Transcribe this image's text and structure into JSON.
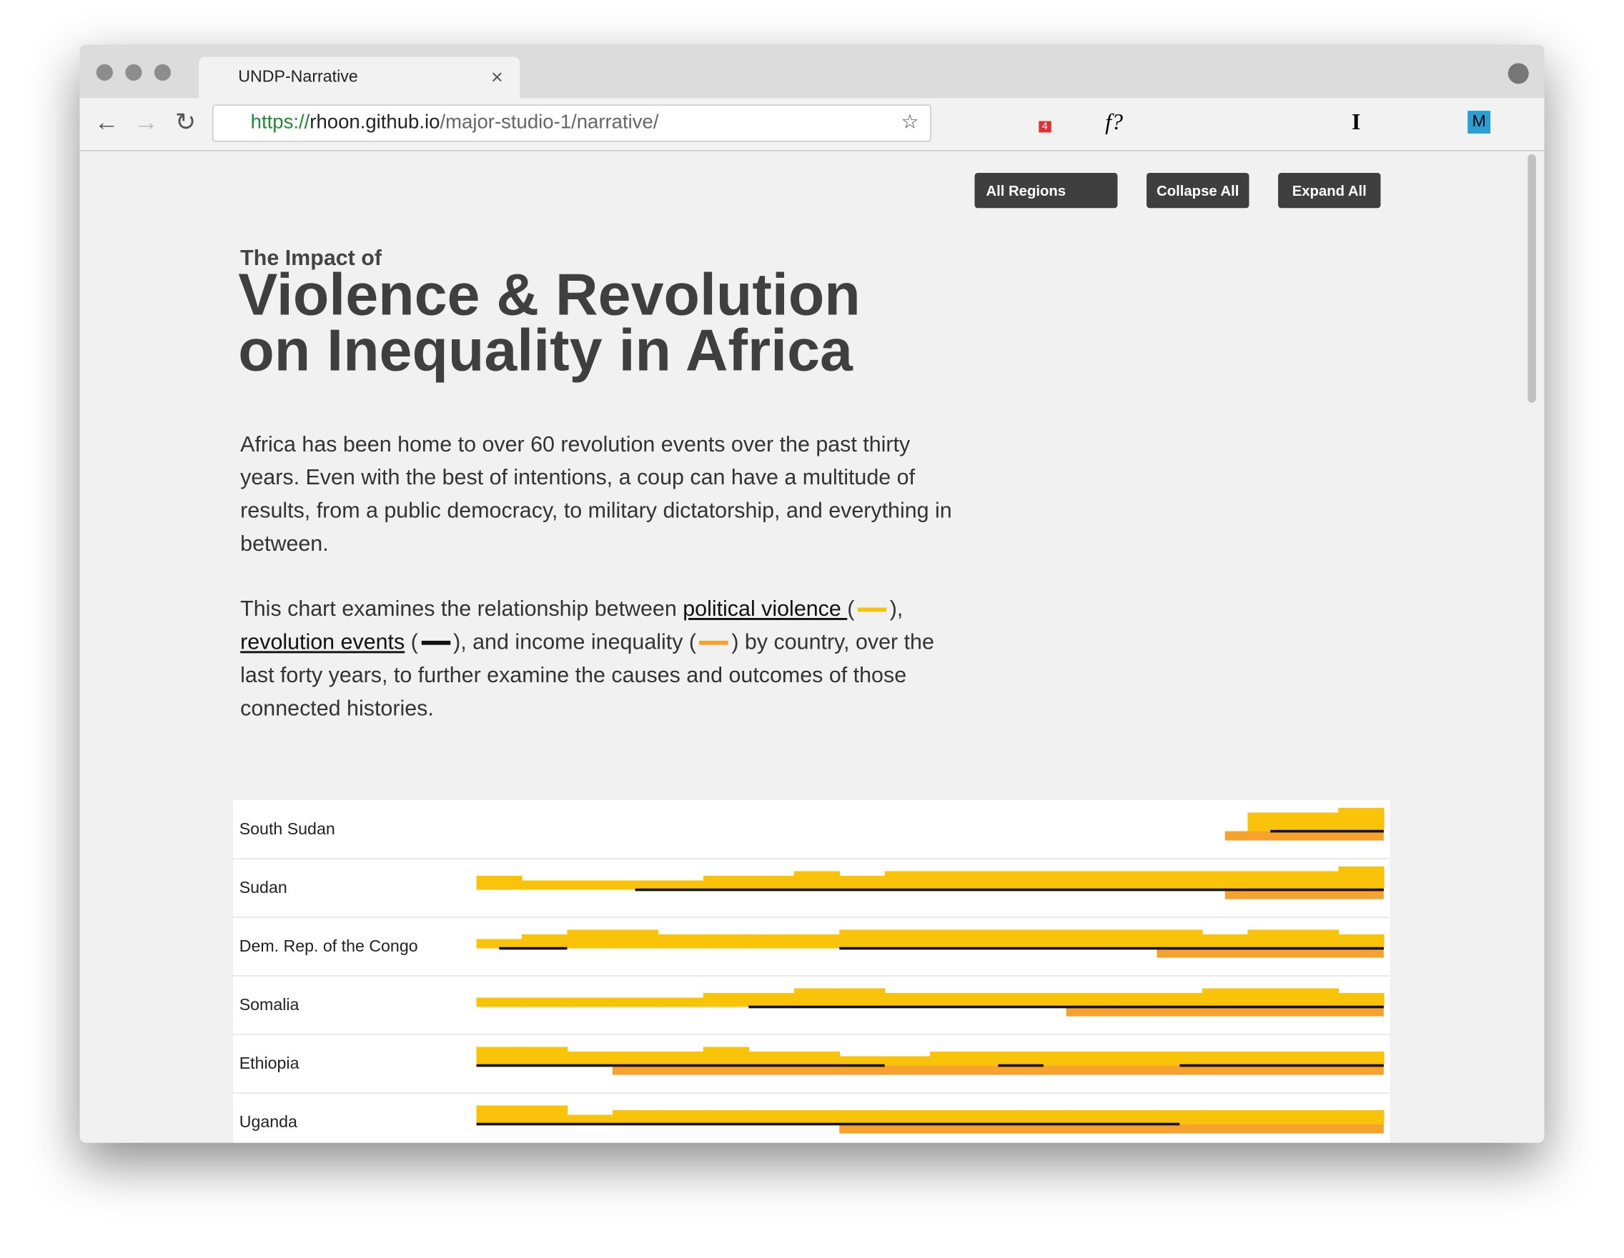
{
  "browser": {
    "tab_title": "UNDP-Narrative",
    "url": {
      "scheme": "https://",
      "host": "rhoon.github.io",
      "path": "/major-studio-1/narrative/"
    },
    "extensions": [
      "f?",
      "I",
      "M"
    ],
    "badge": "4"
  },
  "controls": {
    "select": "All Regions",
    "buttons": [
      "Collapse All",
      "Expand All"
    ]
  },
  "header": {
    "kicker": "The Impact of",
    "title_line1": "Violence & Revolution",
    "title_line2": "on Inequality in Africa"
  },
  "intro": "Africa has been home to over 60 revolution events over the past thirty years. Even with the best of intentions, a coup can have a multitude of results, from a public democracy, to military dictatorship, and everything in between.",
  "explainer": {
    "part1": "This chart examines the relationship between ",
    "link1": "political violence ",
    "part2": "), ",
    "link2": "revolution events",
    "part3": "), and income inequality (",
    "part4": ") by country, over the last forty years, to further examine the causes and outcomes of those connected histories.",
    "open": "(",
    "comma": ","
  },
  "legend": {
    "violence_color": "#f9c30a",
    "revolution_color": "#111111",
    "inequality_color": "#f7a22c"
  },
  "chart": {
    "xlim": [
      0,
      40
    ],
    "rows": [
      {
        "name": "South Sudan",
        "violence": [
          null,
          null,
          null,
          null,
          null,
          null,
          null,
          null,
          null,
          null,
          null,
          null,
          null,
          null,
          null,
          null,
          null,
          4,
          4,
          5
        ],
        "revolution": [
          [
            35,
            40
          ]
        ],
        "inequality": [
          [
            33,
            40
          ]
        ]
      },
      {
        "name": "Sudan",
        "violence": [
          3,
          2,
          2,
          2,
          2,
          3,
          3,
          4,
          3,
          4,
          4,
          4,
          4,
          4,
          4,
          4,
          4,
          4,
          4,
          5
        ],
        "revolution": [
          [
            7,
            40
          ]
        ],
        "inequality": [
          [
            33,
            40
          ]
        ]
      },
      {
        "name": "Dem. Rep. of the Congo",
        "violence": [
          2,
          3,
          4,
          4,
          3,
          3,
          3,
          3,
          4,
          4,
          4,
          4,
          4,
          4,
          4,
          4,
          3,
          4,
          4,
          3
        ],
        "revolution": [
          [
            1,
            4
          ],
          [
            16,
            40
          ]
        ],
        "inequality": [
          [
            30,
            40
          ]
        ]
      },
      {
        "name": "Somalia",
        "violence": [
          2,
          2,
          2,
          2,
          2,
          3,
          3,
          4,
          4,
          3,
          3,
          3,
          3,
          3,
          3,
          3,
          4,
          4,
          4,
          3
        ],
        "revolution": [
          [
            12,
            40
          ]
        ],
        "inequality": [
          [
            26,
            40
          ]
        ]
      },
      {
        "name": "Ethiopia",
        "violence": [
          4,
          4,
          3,
          3,
          3,
          4,
          3,
          3,
          2,
          2,
          3,
          3,
          3,
          3,
          3,
          3,
          3,
          3,
          3,
          3
        ],
        "revolution": [
          [
            0,
            18
          ],
          [
            23,
            25
          ],
          [
            31,
            40
          ]
        ],
        "inequality": [
          [
            6,
            40
          ]
        ]
      },
      {
        "name": "Uganda",
        "violence": [
          4,
          4,
          2,
          3,
          3,
          3,
          3,
          3,
          3,
          3,
          3,
          3,
          3,
          3,
          3,
          3,
          3,
          3,
          3,
          3
        ],
        "revolution": [
          [
            0,
            31
          ]
        ],
        "inequality": [
          [
            16,
            40
          ]
        ]
      }
    ]
  }
}
